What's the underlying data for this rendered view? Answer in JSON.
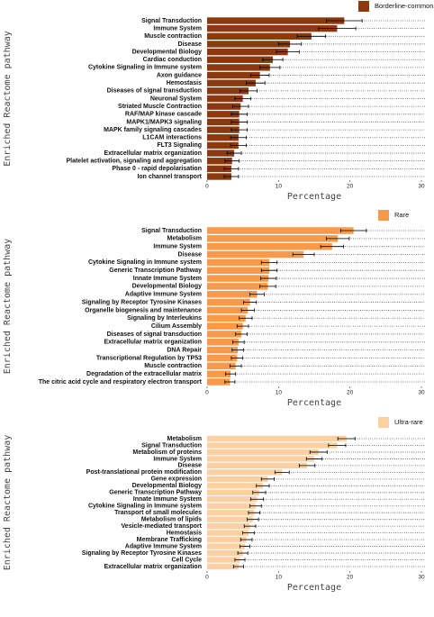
{
  "chart_data": [
    {
      "type": "bar",
      "orientation": "horizontal",
      "color": "#8b3a0f",
      "legend_label": "Borderline-common",
      "xlabel": "Percentage",
      "ylabel": "Enriched Reactome pathway",
      "categories": [
        "Signal Transduction",
        "Immune System",
        "Muscle contraction",
        "Disease",
        "Developmental Biology",
        "Cardiac conduction",
        "Cytokine Signaling in Immune system",
        "Axon guidance",
        "Hemostasis",
        "Diseases of signal transduction",
        "Neuronal System",
        "Striated Muscle Contraction",
        "RAF/MAP kinase cascade",
        "MAPK1/MAPK3 signaling",
        "MAPK family signaling cascades",
        "L1CAM interactions",
        "FLT3 Signaling",
        "Extracellular matrix organization",
        "Platelet activation, signaling and aggregation",
        "Phase 0 - rapid depolarisation",
        "Ion channel transport"
      ],
      "values": [
        19.2,
        18.2,
        14.6,
        11.6,
        11.3,
        9.2,
        8.8,
        7.4,
        6.8,
        5.8,
        5.0,
        4.7,
        4.5,
        4.5,
        4.5,
        4.4,
        4.4,
        3.8,
        3.5,
        3.4,
        3.4
      ],
      "errors": [
        2.5,
        2.6,
        2.0,
        1.6,
        1.6,
        1.4,
        1.4,
        1.3,
        1.3,
        1.2,
        1.1,
        1.1,
        1.1,
        1.1,
        1.1,
        1.1,
        1.1,
        1.0,
        1.0,
        1.0,
        1.0
      ],
      "xlim": [
        -0.5,
        30.5
      ],
      "xticks": [
        0,
        10,
        20,
        30
      ]
    },
    {
      "type": "bar",
      "orientation": "horizontal",
      "color": "#f99a4b",
      "legend_label": "Rare",
      "xlabel": "Percentage",
      "ylabel": "Enriched Reactome pathway",
      "categories": [
        "Signal Transduction",
        "Metabolism",
        "Immune System",
        "Disease",
        "Cytokine Signaling in Immune system",
        "Generic Transcription Pathway",
        "Innate Immune System",
        "Developmental Biology",
        "Adaptive Immune System",
        "Signaling by Receptor Tyrosine Kinases",
        "Organelle biogenesis and maintenance",
        "Signaling by Interleukins",
        "Cilium Assembly",
        "Diseases of signal transduction",
        "Extracellular matrix organization",
        "DNA Repair",
        "Transcriptional Regulation by TP53",
        "Muscle contraction",
        "Degradation of the extracellular matrix",
        "The citric acid cycle and respiratory electron transport"
      ],
      "values": [
        20.5,
        18.3,
        17.5,
        13.5,
        8.7,
        8.7,
        8.6,
        8.5,
        7.0,
        6.0,
        5.7,
        5.4,
        5.0,
        4.8,
        4.4,
        4.3,
        4.2,
        4.0,
        3.3,
        3.2
      ],
      "errors": [
        1.8,
        1.6,
        1.6,
        1.5,
        1.1,
        1.1,
        1.1,
        1.1,
        1.0,
        0.9,
        0.9,
        0.9,
        0.8,
        0.8,
        0.8,
        0.8,
        0.8,
        0.8,
        0.7,
        0.7
      ],
      "xlim": [
        -0.5,
        30.5
      ],
      "xticks": [
        0,
        10,
        20,
        30
      ]
    },
    {
      "type": "bar",
      "orientation": "horizontal",
      "color": "#fcd0a0",
      "legend_label": "Ultra-rare",
      "xlabel": "Percentage",
      "ylabel": "Enriched Reactome pathway",
      "categories": [
        "Metabolism",
        "Signal Transduction",
        "Metabolism of proteins",
        "Immune System",
        "Disease",
        "Post-translational protein modification",
        "Gene expression",
        "Developmental Biology",
        "Generic Transcription Pathway",
        "Innate Immune System",
        "Cytokine Signaling in Immune system",
        "Transport of small molecules",
        "Metabolism of lipids",
        "Vesicle-mediated transport",
        "Hemostasis",
        "Membrane Trafficking",
        "Adaptive Immune System",
        "Signaling by Receptor Tyrosine Kinases",
        "Cell Cycle",
        "Extracellular matrix organization"
      ],
      "values": [
        19.5,
        18.2,
        15.6,
        15.0,
        14.0,
        10.5,
        8.5,
        7.8,
        7.3,
        7.0,
        6.8,
        6.6,
        6.4,
        6.0,
        5.8,
        5.5,
        5.3,
        5.0,
        4.6,
        4.4
      ],
      "errors": [
        1.2,
        1.2,
        1.2,
        1.1,
        1.1,
        1.0,
        0.9,
        0.9,
        0.9,
        0.9,
        0.8,
        0.8,
        0.8,
        0.8,
        0.8,
        0.8,
        0.7,
        0.7,
        0.7,
        0.7
      ],
      "xlim": [
        -0.5,
        30.5
      ],
      "xticks": [
        0,
        10,
        20,
        30
      ]
    }
  ]
}
